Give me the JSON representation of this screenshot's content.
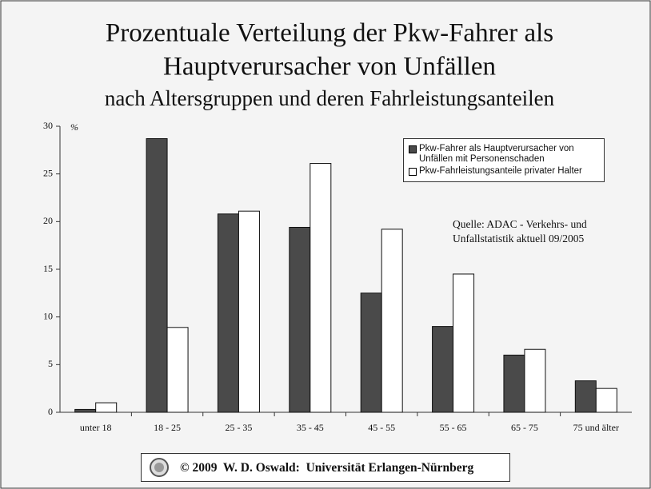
{
  "chart_data": {
    "type": "bar",
    "title": [
      "Prozentuale Verteilung der Pkw-Fahrer als",
      "Hauptverursacher von Unfällen"
    ],
    "subtitle": "nach Altersgruppen und deren Fahrleistungsanteilen",
    "y_label": "%",
    "categories": [
      "unter 18",
      "18 - 25",
      "25 - 35",
      "35 - 45",
      "45 - 55",
      "55 - 65",
      "65 - 75",
      "75 und älter"
    ],
    "series": [
      {
        "name": "Pkw-Fahrer als Hauptverursacher von Unfällen mit Personenschaden",
        "color": "#4a4a4a",
        "values": [
          0.3,
          28.7,
          20.8,
          19.4,
          12.5,
          9.0,
          6.0,
          3.3
        ]
      },
      {
        "name": "Pkw-Fahrleistungsanteile privater Halter",
        "color": "#ffffff",
        "values": [
          1.0,
          8.9,
          21.1,
          26.1,
          19.2,
          14.5,
          6.6,
          2.5
        ]
      }
    ],
    "ylim": [
      0,
      30
    ],
    "yticks": [
      0,
      5,
      10,
      15,
      20,
      25,
      30
    ],
    "grid": false,
    "annotation": "Quelle: ADAC - Verkehrs- und Unfallstatistik aktuell 09/2005"
  },
  "footer": "© 2009  W. D. Oswald:  Universität Erlangen-Nürnberg"
}
